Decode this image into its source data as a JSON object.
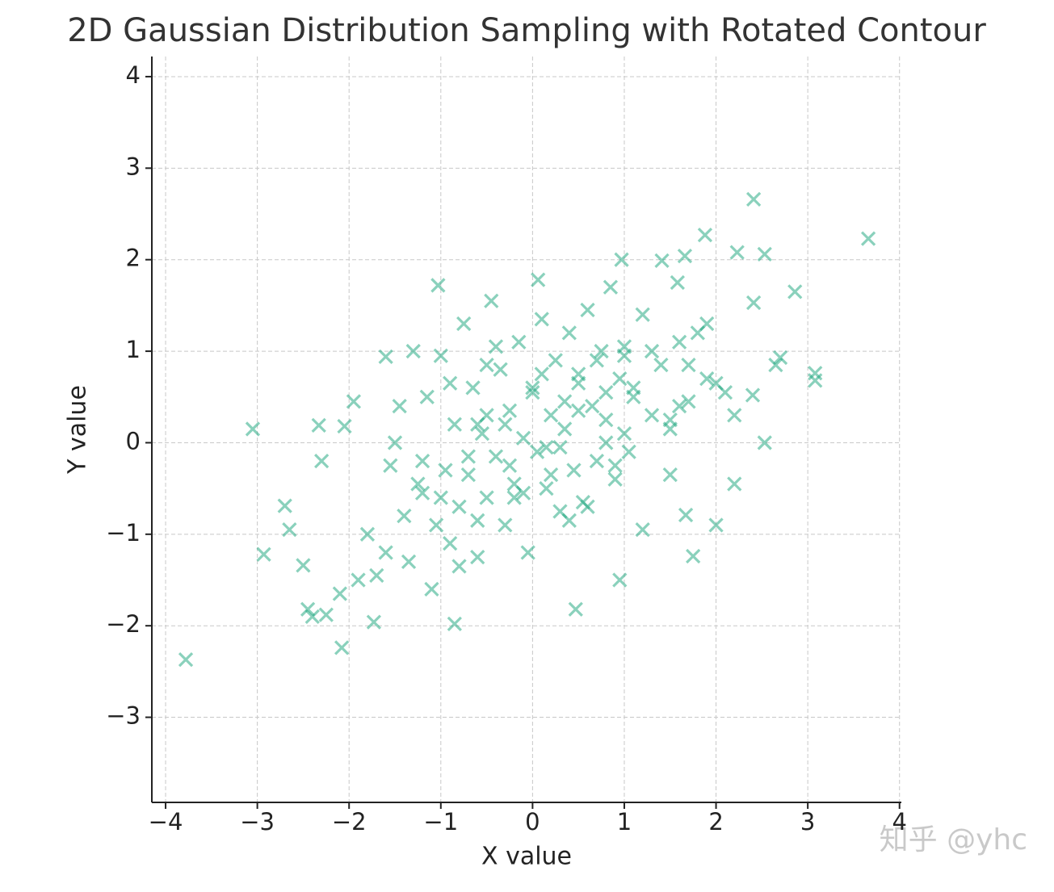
{
  "chart_data": {
    "type": "scatter",
    "title": "2D Gaussian Distribution Sampling with Rotated Contour",
    "x_label": "X value",
    "y_label": "Y value",
    "watermark": "知乎 @yhc",
    "color": "#16a37a",
    "marker": "x",
    "grid": true,
    "xlim": [
      -4.15,
      4.02
    ],
    "ylim": [
      -3.93,
      4.22
    ],
    "xticks": [
      {
        "value": -4,
        "label": "−4"
      },
      {
        "value": -3,
        "label": "−3"
      },
      {
        "value": -2,
        "label": "−2"
      },
      {
        "value": -1,
        "label": "−1"
      },
      0,
      1,
      2,
      3,
      4
    ],
    "yticks": [
      {
        "value": -3,
        "label": "−3"
      },
      {
        "value": -2,
        "label": "−2"
      },
      {
        "value": -1,
        "label": "−1"
      },
      0,
      1,
      2,
      3,
      4
    ],
    "x": [
      -3.78,
      3.66,
      2.41,
      -3.05,
      -2.08,
      1.88,
      2.86,
      3.08,
      3.08,
      -2.93,
      -2.7,
      -2.5,
      -2.45,
      -2.4,
      -2.25,
      0.47,
      -0.85,
      -1.73,
      0.95,
      1.75,
      2.0,
      1.67,
      2.2,
      2.53,
      0.97,
      0.06,
      -1.03,
      -1.6,
      2.4,
      2.65,
      2.7,
      2.41,
      2.53,
      2.23,
      1.66,
      1.58,
      1.41,
      -2.33,
      -2.05,
      -2.65,
      -2.3,
      -2.1,
      -1.95,
      -1.8,
      -1.7,
      -1.55,
      -1.45,
      -1.35,
      -1.3,
      -1.2,
      -1.15,
      -1.1,
      -1.0,
      -0.95,
      -0.9,
      -0.85,
      -0.8,
      -0.75,
      -0.7,
      -0.65,
      -0.6,
      -0.55,
      -0.5,
      -0.45,
      -0.4,
      -0.35,
      -0.3,
      -0.25,
      -0.2,
      -0.15,
      -0.1,
      -0.05,
      0.0,
      0.05,
      0.1,
      0.15,
      0.2,
      0.25,
      0.3,
      0.35,
      0.4,
      0.45,
      0.5,
      0.55,
      0.6,
      0.65,
      0.7,
      0.75,
      0.8,
      0.85,
      0.9,
      0.95,
      1.0,
      1.05,
      1.1,
      1.2,
      1.3,
      1.4,
      1.5,
      1.6,
      1.7,
      1.8,
      1.9,
      2.1,
      2.2,
      -1.9,
      -1.6,
      -1.4,
      -1.25,
      -1.05,
      -0.9,
      -0.7,
      -0.5,
      -0.3,
      -0.1,
      0.1,
      0.3,
      0.5,
      0.7,
      0.9,
      1.1,
      1.3,
      1.5,
      1.7,
      1.9,
      -0.6,
      -0.2,
      0.2,
      0.6,
      1.0,
      -1.2,
      -0.8,
      -0.4,
      0.0,
      0.4,
      0.8,
      1.2,
      1.6,
      -1.5,
      -1.0,
      -0.5,
      0.5,
      1.0,
      1.5,
      2.0,
      0.15,
      -0.25,
      0.35,
      -0.6,
      0.8
    ],
    "values": [
      -2.37,
      2.23,
      2.66,
      0.15,
      -2.24,
      2.27,
      1.65,
      0.76,
      0.68,
      -1.22,
      -0.69,
      -1.34,
      -1.82,
      -1.9,
      -1.88,
      -1.82,
      -1.98,
      -1.96,
      -1.5,
      -1.24,
      -0.9,
      -0.79,
      -0.45,
      0.0,
      2.0,
      1.78,
      1.72,
      0.94,
      0.52,
      0.85,
      0.93,
      1.53,
      2.06,
      2.08,
      2.04,
      1.75,
      1.99,
      0.19,
      0.18,
      -0.95,
      -0.2,
      -1.65,
      0.45,
      -1.0,
      -1.45,
      -0.25,
      0.4,
      -1.3,
      1.0,
      -0.55,
      0.5,
      -1.6,
      0.95,
      -0.3,
      -1.1,
      0.2,
      -0.7,
      1.3,
      -0.35,
      0.6,
      -1.25,
      0.1,
      -0.6,
      1.55,
      -0.15,
      0.8,
      -0.9,
      0.35,
      -0.45,
      1.1,
      0.05,
      -1.2,
      0.55,
      -0.1,
      1.35,
      -0.5,
      0.3,
      0.9,
      -0.75,
      0.15,
      1.2,
      -0.3,
      0.65,
      -0.65,
      1.45,
      0.4,
      -0.2,
      1.0,
      0.25,
      1.7,
      -0.4,
      0.7,
      1.05,
      -0.1,
      0.5,
      1.4,
      0.3,
      0.85,
      -0.35,
      1.1,
      0.45,
      1.2,
      0.7,
      0.55,
      0.3,
      -1.5,
      -1.2,
      -0.8,
      -0.45,
      -0.9,
      0.65,
      -0.15,
      0.85,
      0.2,
      -0.55,
      0.75,
      -0.05,
      0.35,
      0.9,
      -0.25,
      0.6,
      1.0,
      0.15,
      0.85,
      1.3,
      -0.85,
      -0.6,
      -0.35,
      -0.7,
      0.1,
      -0.2,
      -1.35,
      1.05,
      0.6,
      -0.85,
      0.55,
      -0.95,
      0.4,
      0.0,
      -0.6,
      0.3,
      0.75,
      0.95,
      0.25,
      0.65,
      -0.05,
      -0.25,
      0.45,
      0.2,
      0.0
    ]
  }
}
